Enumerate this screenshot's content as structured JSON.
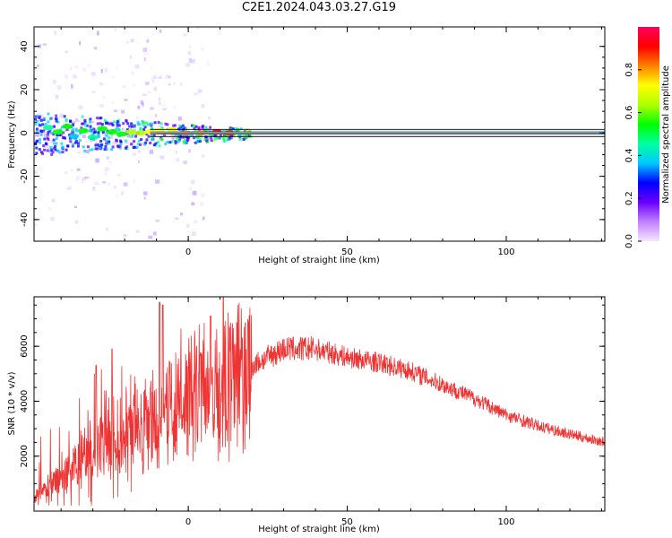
{
  "title": "C2E1.2024.043.03.27.G19",
  "chart_data": [
    {
      "type": "heatmap",
      "xlabel": "Height of straight line (km)",
      "ylabel": "Frequency (Hz)",
      "xlim": [
        -48.5,
        131
      ],
      "ylim": [
        -50,
        49
      ],
      "xticks": [
        0,
        50,
        100
      ],
      "yticks": [
        -40,
        -20,
        0,
        20,
        40
      ],
      "colorbar": {
        "label": "Normalized spectral amplitude",
        "range": [
          0,
          1
        ],
        "ticks": [
          "0.0",
          "0.2",
          "0.4",
          "0.6",
          "0.8"
        ],
        "colormap": [
          "#f5e6ff",
          "#c080ff",
          "#6a00ff",
          "#0000ff",
          "#00c8ff",
          "#00ffa0",
          "#00ff00",
          "#b0ff00",
          "#ffff00",
          "#ff8000",
          "#ff0000",
          "#ff0060"
        ]
      },
      "dominant_frequency_hz": 0,
      "blobs": [
        {
          "x": -44,
          "y": 2.5,
          "v": 0.45
        },
        {
          "x": -41,
          "y": 0.5,
          "v": 0.5
        },
        {
          "x": -38,
          "y": 3,
          "v": 0.55
        },
        {
          "x": -36,
          "y": -1.5,
          "v": 0.4
        },
        {
          "x": -33,
          "y": 1,
          "v": 0.55
        },
        {
          "x": -30,
          "y": -2,
          "v": 0.45
        },
        {
          "x": -27,
          "y": 2,
          "v": 0.5
        },
        {
          "x": -24,
          "y": 0.5,
          "v": 0.55
        },
        {
          "x": -21,
          "y": -0.5,
          "v": 0.5
        },
        {
          "x": -18,
          "y": 0.5,
          "v": 0.6
        },
        {
          "x": -15,
          "y": 0,
          "v": 0.65
        },
        {
          "x": -12,
          "y": 0.5,
          "v": 0.7
        },
        {
          "x": -9,
          "y": 1,
          "v": 0.72
        },
        {
          "x": -5,
          "y": 1.5,
          "v": 0.75
        },
        {
          "x": -1,
          "y": 0,
          "v": 0.82
        },
        {
          "x": 4,
          "y": 0,
          "v": 0.85
        },
        {
          "x": 9,
          "y": 0.5,
          "v": 0.88
        },
        {
          "x": 13,
          "y": 0,
          "v": 0.9
        }
      ]
    },
    {
      "type": "line",
      "xlabel": "Height of straight line (km)",
      "ylabel": "SNR (10 * v/v)",
      "xlim": [
        -48.5,
        131
      ],
      "ylim": [
        0,
        7800
      ],
      "xticks": [
        0,
        50,
        100
      ],
      "yticks": [
        2000,
        4000,
        6000
      ],
      "color": "#ee3333",
      "trend": [
        {
          "x": -48.5,
          "y": 400
        },
        {
          "x": -40,
          "y": 1200
        },
        {
          "x": -30,
          "y": 2200
        },
        {
          "x": -20,
          "y": 2900
        },
        {
          "x": -10,
          "y": 3400
        },
        {
          "x": 0,
          "y": 4100
        },
        {
          "x": 10,
          "y": 4500
        },
        {
          "x": 20,
          "y": 5300
        },
        {
          "x": 30,
          "y": 5900
        },
        {
          "x": 40,
          "y": 5900
        },
        {
          "x": 50,
          "y": 5600
        },
        {
          "x": 60,
          "y": 5400
        },
        {
          "x": 70,
          "y": 5100
        },
        {
          "x": 80,
          "y": 4600
        },
        {
          "x": 90,
          "y": 4100
        },
        {
          "x": 100,
          "y": 3500
        },
        {
          "x": 110,
          "y": 3100
        },
        {
          "x": 120,
          "y": 2800
        },
        {
          "x": 131,
          "y": 2500
        }
      ],
      "peaks": [
        {
          "x": -9,
          "y": 7600
        },
        {
          "x": -8,
          "y": 7500
        },
        {
          "x": 11,
          "y": 7800
        },
        {
          "x": 7,
          "y": 7100
        },
        {
          "x": -24,
          "y": 5900
        },
        {
          "x": -29,
          "y": 5300
        }
      ]
    }
  ]
}
